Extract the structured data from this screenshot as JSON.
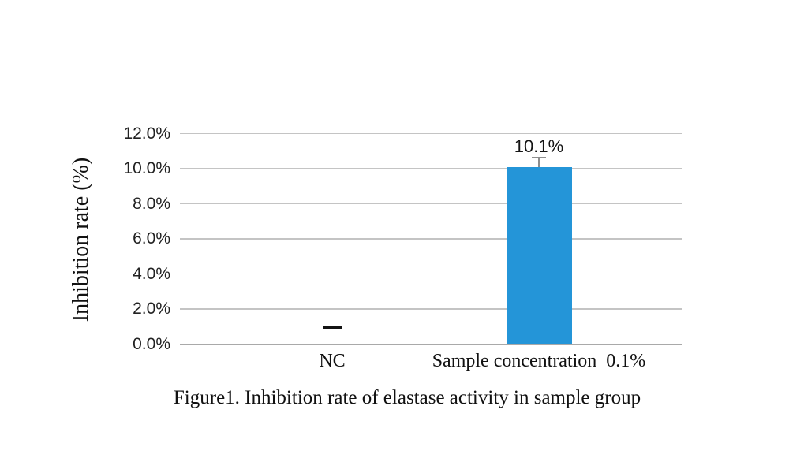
{
  "figure": {
    "caption": "Figure1. Inhibition rate of elastase activity in sample group"
  },
  "chart_data": {
    "type": "bar",
    "title": "",
    "xlabel": "",
    "ylabel": "Inhibition rate (%)",
    "ylim": [
      0,
      12
    ],
    "ytick_step": 2,
    "yticks": [
      {
        "value": 0,
        "label": "0.0%"
      },
      {
        "value": 2,
        "label": "2.0%"
      },
      {
        "value": 4,
        "label": "4.0%"
      },
      {
        "value": 6,
        "label": "6.0%"
      },
      {
        "value": 8,
        "label": "8.0%"
      },
      {
        "value": 10,
        "label": "10.0%"
      },
      {
        "value": 12,
        "label": "12.0%"
      }
    ],
    "grid": true,
    "legend": "none",
    "bar_color": "#2495D8",
    "gridline_color": "#C4C4C4",
    "axisline_color": "#A9A9A9",
    "error_bar_color": "#8E8E8E",
    "categories": [
      "NC",
      "Sample concentration  0.1%"
    ],
    "points": [
      {
        "category": "NC",
        "value": 0,
        "data_label": "—",
        "label_style": "dash"
      },
      {
        "category": "Sample concentration  0.1%",
        "value": 10.1,
        "data_label": "10.1%",
        "error_up": 0.55
      }
    ]
  }
}
